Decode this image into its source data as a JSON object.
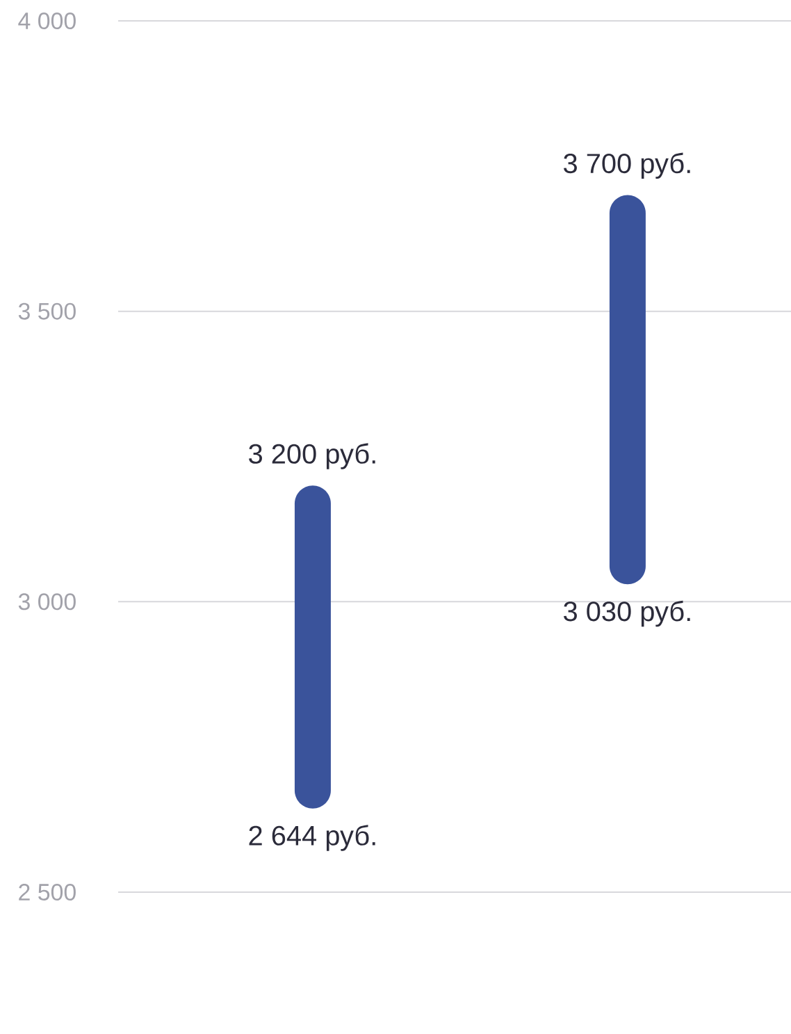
{
  "chart_data": {
    "type": "bar",
    "categories": [
      null,
      null
    ],
    "base": [
      2644,
      3030
    ],
    "values": [
      556,
      670
    ],
    "color": "#3a539b",
    "ylim": [
      2500,
      4000
    ],
    "yticks": [
      {
        "value": 2500,
        "label": "2 500"
      },
      {
        "value": 3000,
        "label": "3 000"
      },
      {
        "value": 3500,
        "label": "3 500"
      },
      {
        "value": 4000,
        "label": "4 000"
      }
    ],
    "grid": "y",
    "annotations": [
      {
        "text": "3 200 руб.",
        "y": 3200
      },
      {
        "text": "2 644 руб.",
        "y": 2644
      },
      {
        "text": "3 700 руб.",
        "y": 3700
      },
      {
        "text": "3 030 руб.",
        "y": 3030
      }
    ]
  }
}
